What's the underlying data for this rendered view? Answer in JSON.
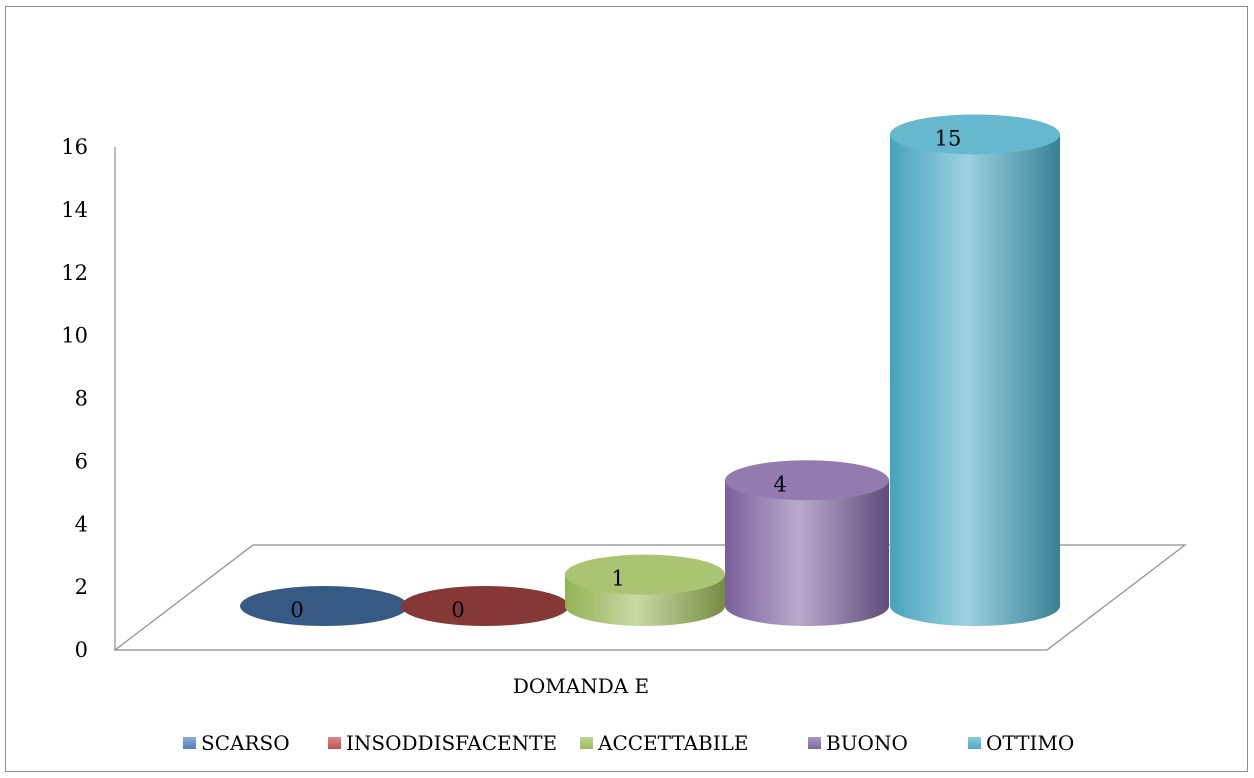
{
  "chart_data": {
    "type": "bar",
    "style": "3d-cylinder",
    "title": "",
    "xlabel": "",
    "ylabel": "",
    "categories": [
      "DOMANDA E"
    ],
    "series": [
      {
        "name": "SCARSO",
        "values": [
          0
        ],
        "color": "#4f81bd"
      },
      {
        "name": "INSODDISFACENTE",
        "values": [
          0
        ],
        "color": "#c0504d"
      },
      {
        "name": "ACCETTABILE",
        "values": [
          1
        ],
        "color": "#9bbb59"
      },
      {
        "name": "BUONO",
        "values": [
          4
        ],
        "color": "#8064a2"
      },
      {
        "name": "OTTIMO",
        "values": [
          15
        ],
        "color": "#4bacc6"
      }
    ],
    "ylim": [
      0,
      16
    ],
    "yticks": [
      "0",
      "2",
      "4",
      "6",
      "8",
      "10",
      "12",
      "14",
      "16"
    ],
    "data_labels": [
      "0",
      "0",
      "1",
      "4",
      "15"
    ],
    "legend_position": "bottom",
    "grid": false
  }
}
